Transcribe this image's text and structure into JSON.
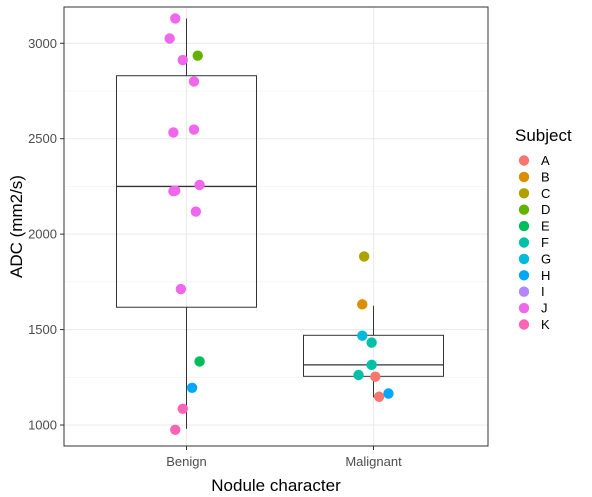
{
  "chart_data": {
    "type": "boxplot-with-jitter",
    "xlabel": "Nodule character",
    "ylabel": "ADC (mm2/s)",
    "categories": [
      "Benign",
      "Malignant"
    ],
    "ylim": [
      890,
      3190
    ],
    "yticks": [
      1000,
      1500,
      2000,
      2500,
      3000
    ],
    "grid": true,
    "legend": {
      "title": "Subject",
      "placement": "right",
      "entries": [
        {
          "label": "A",
          "color": "#F8766D"
        },
        {
          "label": "B",
          "color": "#DB8E00"
        },
        {
          "label": "C",
          "color": "#AEA200"
        },
        {
          "label": "D",
          "color": "#64B200"
        },
        {
          "label": "E",
          "color": "#00BD5C"
        },
        {
          "label": "F",
          "color": "#00C1A7"
        },
        {
          "label": "G",
          "color": "#00BADE"
        },
        {
          "label": "H",
          "color": "#00A6FF"
        },
        {
          "label": "I",
          "color": "#B385FF"
        },
        {
          "label": "J",
          "color": "#EF67EB"
        },
        {
          "label": "K",
          "color": "#FF63B6"
        }
      ]
    },
    "boxes": [
      {
        "category": "Benign",
        "whisker_low": 980,
        "q1": 1617,
        "median": 2250,
        "q3": 2830,
        "whisker_high": 3130
      },
      {
        "category": "Malignant",
        "whisker_low": 1145,
        "q1": 1255,
        "median": 1315,
        "q3": 1470,
        "whisker_high": 1625
      }
    ],
    "points": [
      {
        "category": "Benign",
        "jitter": -0.06,
        "y": 3130,
        "subject": "J"
      },
      {
        "category": "Benign",
        "jitter": -0.09,
        "y": 3025,
        "subject": "J"
      },
      {
        "category": "Benign",
        "jitter": 0.06,
        "y": 2935,
        "subject": "D"
      },
      {
        "category": "Benign",
        "jitter": -0.02,
        "y": 2912,
        "subject": "J"
      },
      {
        "category": "Benign",
        "jitter": 0.04,
        "y": 2800,
        "subject": "J"
      },
      {
        "category": "Benign",
        "jitter": 0.04,
        "y": 2548,
        "subject": "J"
      },
      {
        "category": "Benign",
        "jitter": -0.07,
        "y": 2533,
        "subject": "J"
      },
      {
        "category": "Benign",
        "jitter": 0.07,
        "y": 2258,
        "subject": "J"
      },
      {
        "category": "Benign",
        "jitter": -0.06,
        "y": 2228,
        "subject": "J"
      },
      {
        "category": "Benign",
        "jitter": -0.07,
        "y": 2225,
        "subject": "J"
      },
      {
        "category": "Benign",
        "jitter": 0.05,
        "y": 2118,
        "subject": "J"
      },
      {
        "category": "Benign",
        "jitter": -0.03,
        "y": 1712,
        "subject": "J"
      },
      {
        "category": "Benign",
        "jitter": 0.07,
        "y": 1333,
        "subject": "E"
      },
      {
        "category": "Benign",
        "jitter": 0.03,
        "y": 1195,
        "subject": "H"
      },
      {
        "category": "Benign",
        "jitter": -0.02,
        "y": 1085,
        "subject": "K"
      },
      {
        "category": "Benign",
        "jitter": -0.06,
        "y": 975,
        "subject": "K"
      },
      {
        "category": "Malignant",
        "jitter": -0.05,
        "y": 1883,
        "subject": "C"
      },
      {
        "category": "Malignant",
        "jitter": -0.06,
        "y": 1632,
        "subject": "B"
      },
      {
        "category": "Malignant",
        "jitter": -0.06,
        "y": 1468,
        "subject": "G"
      },
      {
        "category": "Malignant",
        "jitter": -0.01,
        "y": 1432,
        "subject": "F"
      },
      {
        "category": "Malignant",
        "jitter": -0.01,
        "y": 1315,
        "subject": "F"
      },
      {
        "category": "Malignant",
        "jitter": -0.08,
        "y": 1262,
        "subject": "F"
      },
      {
        "category": "Malignant",
        "jitter": 0.01,
        "y": 1253,
        "subject": "A"
      },
      {
        "category": "Malignant",
        "jitter": 0.08,
        "y": 1165,
        "subject": "H"
      },
      {
        "category": "Malignant",
        "jitter": 0.03,
        "y": 1148,
        "subject": "A"
      }
    ]
  }
}
